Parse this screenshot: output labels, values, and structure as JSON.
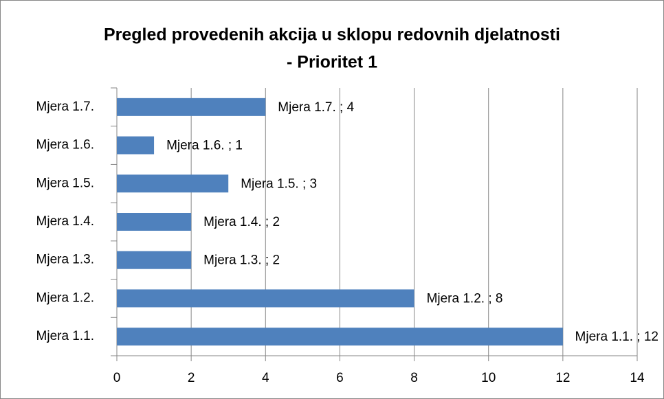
{
  "chart_data": {
    "type": "bar",
    "orientation": "horizontal",
    "title": [
      "Pregled provedenih akcija u sklopu redovnih djelatnosti",
      "- Prioritet 1"
    ],
    "categories": [
      "Mjera 1.1.",
      "Mjera 1.2.",
      "Mjera 1.3.",
      "Mjera 1.4.",
      "Mjera 1.5.",
      "Mjera 1.6.",
      "Mjera 1.7."
    ],
    "values": [
      12,
      8,
      2,
      2,
      3,
      1,
      4
    ],
    "value_labels": [
      "Mjera 1.1. ; 12",
      "Mjera 1.2. ; 8",
      "Mjera 1.3. ; 2",
      "Mjera 1.4. ; 2",
      "Mjera 1.5. ; 3",
      "Mjera 1.6. ; 1",
      "Mjera 1.7. ; 4"
    ],
    "color": "#4f81bd",
    "xlim": [
      0,
      14
    ],
    "xticks": [
      0,
      2,
      4,
      6,
      8,
      10,
      12,
      14
    ],
    "grid": true
  }
}
